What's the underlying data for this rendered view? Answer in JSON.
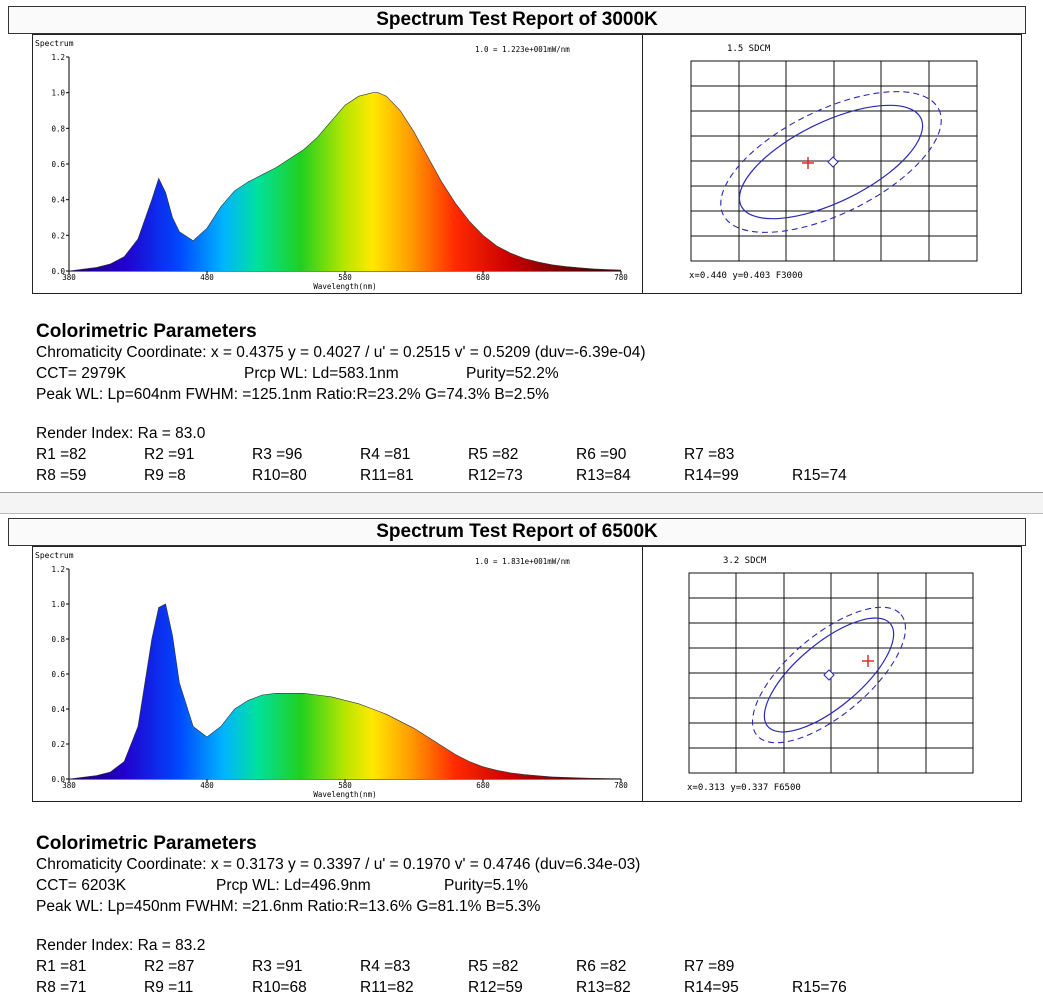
{
  "reports": [
    {
      "title": "Spectrum Test Report of 3000K",
      "chart_data": {
        "type": "area",
        "title": "Spectrum",
        "note": "1.0 = 1.223e+001mW/nm",
        "xlabel": "Wavelength(nm)",
        "xlim": [
          380,
          780
        ],
        "ylim": [
          0,
          1.2
        ],
        "xticks": [
          "380",
          "480",
          "580",
          "680",
          "780"
        ],
        "yticks": [
          "0.0",
          "0.2",
          "0.4",
          "0.6",
          "0.8",
          "1.0",
          "1.2"
        ],
        "x": [
          380,
          390,
          400,
          410,
          420,
          430,
          440,
          445,
          450,
          455,
          460,
          470,
          480,
          490,
          500,
          510,
          520,
          530,
          540,
          550,
          560,
          570,
          580,
          590,
          600,
          604,
          610,
          620,
          630,
          640,
          650,
          660,
          670,
          680,
          690,
          700,
          710,
          720,
          730,
          740,
          750,
          760,
          770,
          780
        ],
        "y": [
          0.0,
          0.01,
          0.02,
          0.04,
          0.08,
          0.18,
          0.4,
          0.52,
          0.44,
          0.3,
          0.22,
          0.17,
          0.24,
          0.36,
          0.45,
          0.5,
          0.54,
          0.58,
          0.63,
          0.68,
          0.75,
          0.84,
          0.93,
          0.98,
          1.0,
          1.0,
          0.98,
          0.9,
          0.78,
          0.64,
          0.5,
          0.38,
          0.28,
          0.2,
          0.14,
          0.1,
          0.07,
          0.05,
          0.035,
          0.025,
          0.018,
          0.012,
          0.008,
          0.005
        ]
      },
      "sdcm": {
        "label": "1.5 SDCM",
        "readout": "x=0.440 y=0.403 F3000"
      },
      "params": {
        "heading": "Colorimetric Parameters",
        "line1": "Chromaticity Coordinate: x = 0.4375 y = 0.4027 / u' = 0.2515 v' = 0.5209 (duv=-6.39e-04)",
        "cct": "CCT=  2979K",
        "prcp": "Prcp WL:  Ld=583.1nm",
        "purity": "Purity=52.2%",
        "line3": "Peak WL:  Lp=604nm  FWHM:  =125.1nm  Ratio:R=23.2% G=74.3% B=2.5%",
        "render": "Render Index: Ra = 83.0",
        "r_row1": [
          "R1 =82",
          "R2 =91",
          "R3 =96",
          "R4 =81",
          "R5 =82",
          "R6 =90",
          "R7 =83"
        ],
        "r_row2": [
          "R8 =59",
          "R9 =8",
          "R10=80",
          "R11=81",
          "R12=73",
          "R13=84",
          "R14=99",
          "R15=74"
        ]
      }
    },
    {
      "title": "Spectrum Test Report of 6500K",
      "chart_data": {
        "type": "area",
        "title": "Spectrum",
        "note": "1.0 = 1.831e+001mW/nm",
        "xlabel": "Wavelength(nm)",
        "xlim": [
          380,
          780
        ],
        "ylim": [
          0,
          1.2
        ],
        "xticks": [
          "380",
          "480",
          "580",
          "680",
          "780"
        ],
        "yticks": [
          "0.0",
          "0.2",
          "0.4",
          "0.6",
          "0.8",
          "1.0",
          "1.2"
        ],
        "x": [
          380,
          390,
          400,
          410,
          420,
          430,
          435,
          440,
          445,
          450,
          455,
          460,
          470,
          480,
          490,
          500,
          510,
          520,
          530,
          540,
          550,
          560,
          570,
          580,
          590,
          600,
          610,
          620,
          630,
          640,
          650,
          660,
          670,
          680,
          690,
          700,
          710,
          720,
          730,
          740,
          750,
          760,
          770,
          780
        ],
        "y": [
          0.0,
          0.01,
          0.02,
          0.04,
          0.1,
          0.3,
          0.55,
          0.8,
          0.98,
          1.0,
          0.82,
          0.55,
          0.3,
          0.24,
          0.3,
          0.4,
          0.45,
          0.48,
          0.49,
          0.49,
          0.49,
          0.48,
          0.47,
          0.45,
          0.43,
          0.4,
          0.37,
          0.33,
          0.29,
          0.24,
          0.19,
          0.14,
          0.1,
          0.07,
          0.05,
          0.035,
          0.025,
          0.018,
          0.012,
          0.009,
          0.006,
          0.004,
          0.003,
          0.002
        ]
      },
      "sdcm": {
        "label": "3.2 SDCM",
        "readout": "x=0.313 y=0.337 F6500"
      },
      "params": {
        "heading": "Colorimetric Parameters",
        "line1": "Chromaticity Coordinate: x = 0.3173 y = 0.3397 / u' = 0.1970 v' = 0.4746 (duv=6.34e-03)",
        "cct": "CCT=  6203K",
        "prcp": "Prcp WL:  Ld=496.9nm",
        "purity": "Purity=5.1%",
        "line3": "Peak WL:  Lp=450nm  FWHM:  =21.6nm  Ratio:R=13.6% G=81.1% B=5.3%",
        "render": "Render Index: Ra = 83.2",
        "r_row1": [
          "R1 =81",
          "R2 =87",
          "R3 =91",
          "R4 =83",
          "R5 =82",
          "R6 =82",
          "R7 =89"
        ],
        "r_row2": [
          "R8 =71",
          "R9 =11",
          "R10=68",
          "R11=82",
          "R12=59",
          "R13=82",
          "R14=95",
          "R15=76"
        ]
      }
    }
  ]
}
